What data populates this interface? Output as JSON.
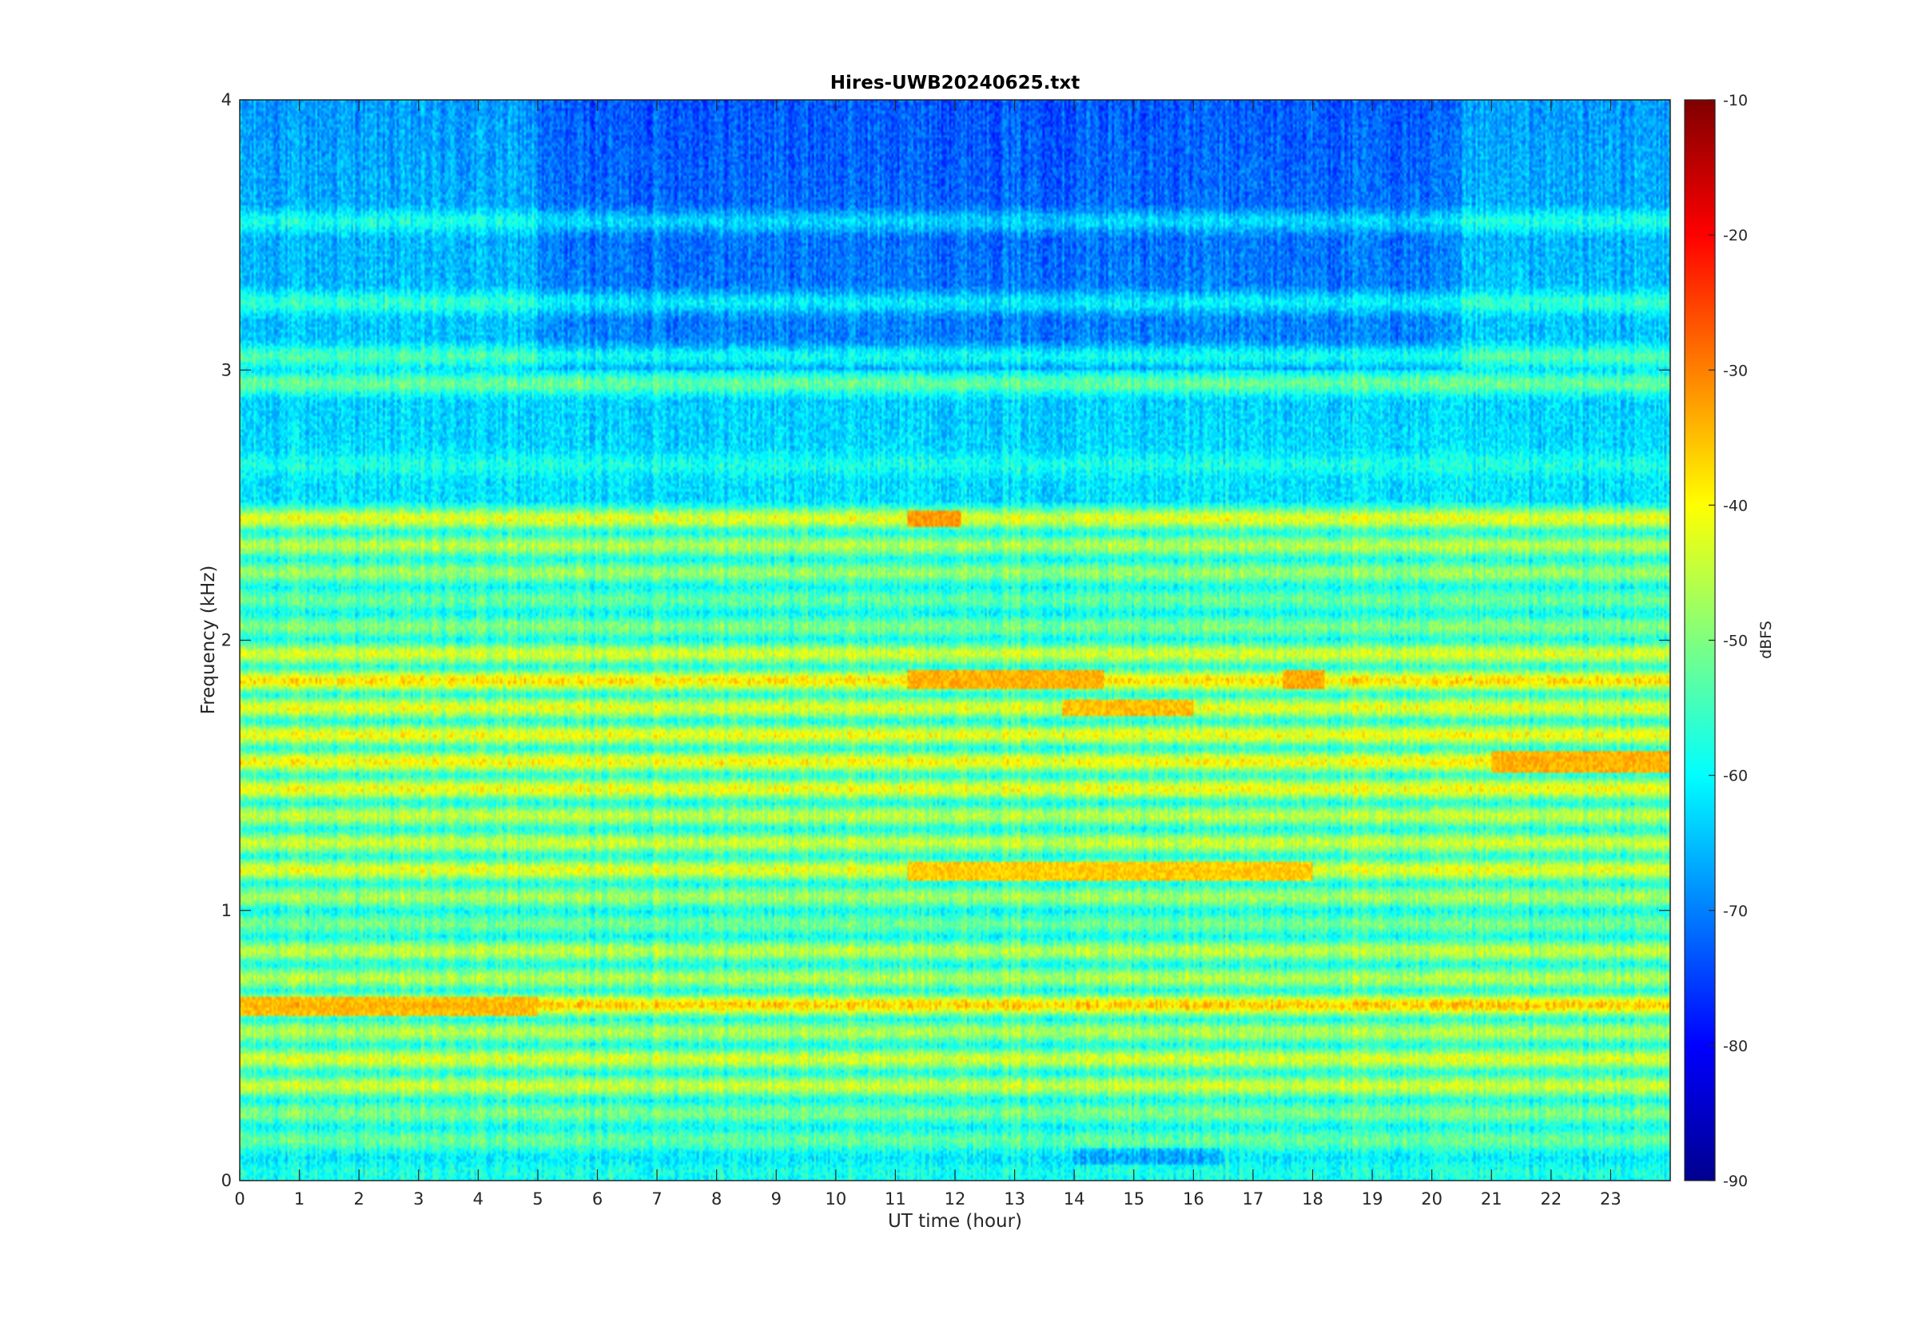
{
  "chart_data": {
    "type": "heatmap",
    "title": "Hires-UWB20240625.txt",
    "xlabel": "UT time (hour)",
    "ylabel": "Frequency (kHz)",
    "xlim": [
      0,
      24
    ],
    "ylim": [
      0,
      4
    ],
    "x_ticks": [
      "0",
      "1",
      "2",
      "3",
      "4",
      "5",
      "6",
      "7",
      "8",
      "9",
      "10",
      "11",
      "12",
      "13",
      "14",
      "15",
      "16",
      "17",
      "18",
      "19",
      "20",
      "21",
      "22",
      "23"
    ],
    "y_ticks": [
      "0",
      "1",
      "2",
      "3",
      "4"
    ],
    "colorbar": {
      "label": "dBFS",
      "range": [
        -90,
        -10
      ],
      "ticks": [
        "-90",
        "-80",
        "-70",
        "-60",
        "-50",
        "-40",
        "-30",
        "-20",
        "-10"
      ],
      "colormap": "jet"
    },
    "bands": [
      {
        "f": 0.03,
        "level": -58
      },
      {
        "f": 0.09,
        "level": -76
      },
      {
        "f": 0.15,
        "level": -52
      },
      {
        "f": 0.2,
        "level": -64
      },
      {
        "f": 0.25,
        "level": -50
      },
      {
        "f": 0.35,
        "level": -44
      },
      {
        "f": 0.45,
        "level": -43
      },
      {
        "f": 0.55,
        "level": -46
      },
      {
        "f": 0.65,
        "level": -36
      },
      {
        "f": 0.75,
        "level": -46
      },
      {
        "f": 0.85,
        "level": -45
      },
      {
        "f": 0.95,
        "level": -51
      },
      {
        "f": 1.05,
        "level": -47
      },
      {
        "f": 1.15,
        "level": -42
      },
      {
        "f": 1.25,
        "level": -44
      },
      {
        "f": 1.35,
        "level": -45
      },
      {
        "f": 1.45,
        "level": -41
      },
      {
        "f": 1.55,
        "level": -40
      },
      {
        "f": 1.65,
        "level": -41
      },
      {
        "f": 1.75,
        "level": -42
      },
      {
        "f": 1.85,
        "level": -38
      },
      {
        "f": 1.95,
        "level": -43
      },
      {
        "f": 2.05,
        "level": -50
      },
      {
        "f": 2.15,
        "level": -52
      },
      {
        "f": 2.25,
        "level": -48
      },
      {
        "f": 2.35,
        "level": -46
      },
      {
        "f": 2.45,
        "level": -42
      },
      {
        "f": 2.65,
        "level": -58
      },
      {
        "f": 2.95,
        "level": -52
      },
      {
        "f": 3.05,
        "level": -54
      },
      {
        "f": 3.25,
        "level": -56
      },
      {
        "f": 3.55,
        "level": -58
      }
    ],
    "hotspots": [
      {
        "t0": 11.2,
        "t1": 12.1,
        "f": 2.45,
        "level": -32
      },
      {
        "t0": 11.2,
        "t1": 18.0,
        "f": 1.15,
        "level": -36
      },
      {
        "t0": 11.2,
        "t1": 14.5,
        "f": 1.85,
        "level": -34
      },
      {
        "t0": 17.5,
        "t1": 18.2,
        "f": 1.85,
        "level": -33
      },
      {
        "t0": 13.8,
        "t1": 16.0,
        "f": 1.75,
        "level": -35
      },
      {
        "t0": 21.0,
        "t1": 24.0,
        "f": 1.55,
        "level": -34
      },
      {
        "t0": 0.0,
        "t1": 5.0,
        "f": 0.65,
        "level": -35
      }
    ]
  }
}
